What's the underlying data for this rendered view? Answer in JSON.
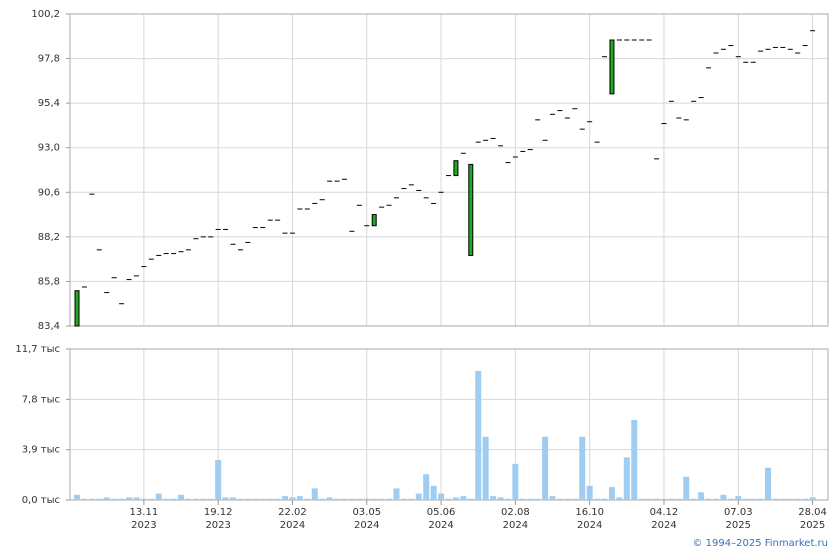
{
  "chart_data": [
    {
      "type": "candlestick",
      "color": "#22a822",
      "open": [
        83.4,
        85.5,
        90.5,
        87.5,
        85.2,
        86.0,
        84.6,
        85.9,
        86.1,
        86.6,
        87.0,
        87.2,
        87.3,
        87.3,
        87.4,
        87.5,
        88.1,
        88.2,
        88.2,
        88.6,
        88.6,
        87.8,
        87.5,
        87.9,
        88.7,
        88.7,
        89.1,
        89.1,
        88.4,
        88.4,
        89.7,
        89.7,
        90.0,
        90.2,
        91.2,
        91.2,
        91.3,
        88.5,
        89.9,
        88.8,
        88.8,
        89.8,
        89.9,
        90.3,
        90.8,
        91.0,
        90.7,
        90.3,
        90.0,
        90.6,
        91.5,
        91.5,
        92.7,
        87.2,
        93.3,
        93.4,
        93.5,
        93.1,
        92.2,
        92.5,
        92.8,
        92.9,
        94.5,
        93.4,
        94.8,
        95.0,
        94.6,
        95.1,
        94.0,
        94.4,
        93.3,
        97.9,
        95.9,
        98.8,
        98.8,
        98.8,
        98.8,
        98.8,
        92.4,
        94.3,
        95.5,
        94.6,
        94.5,
        95.5,
        95.7,
        97.3,
        98.1,
        98.3,
        98.5,
        97.9,
        97.6,
        97.6,
        98.2,
        98.3,
        98.4,
        98.4,
        98.3,
        98.1,
        98.5,
        99.3
      ],
      "close": [
        85.3,
        85.5,
        90.5,
        87.5,
        85.2,
        86.0,
        84.6,
        85.9,
        86.1,
        86.6,
        87.0,
        87.2,
        87.3,
        87.3,
        87.4,
        87.5,
        88.1,
        88.2,
        88.2,
        88.6,
        88.6,
        87.8,
        87.5,
        87.9,
        88.7,
        88.7,
        89.1,
        89.1,
        88.4,
        88.4,
        89.7,
        89.7,
        90.0,
        90.2,
        91.2,
        91.2,
        91.3,
        88.5,
        89.9,
        88.8,
        89.4,
        89.8,
        89.9,
        90.3,
        90.8,
        91.0,
        90.7,
        90.3,
        90.0,
        90.6,
        91.5,
        92.3,
        92.7,
        92.1,
        93.3,
        93.4,
        93.5,
        93.1,
        92.2,
        92.5,
        92.8,
        92.9,
        94.5,
        93.4,
        94.8,
        95.0,
        94.6,
        95.1,
        94.0,
        94.4,
        93.3,
        97.9,
        98.8,
        98.8,
        98.8,
        98.8,
        98.8,
        98.8,
        92.4,
        94.3,
        95.5,
        94.6,
        94.5,
        95.5,
        95.7,
        97.3,
        98.1,
        98.3,
        98.5,
        97.9,
        97.6,
        97.6,
        98.2,
        98.3,
        98.4,
        98.4,
        98.3,
        98.1,
        98.5,
        99.3
      ],
      "ylim": [
        83.4,
        100.2
      ],
      "yticks": [
        {
          "value": 83.4,
          "label": "83,4"
        },
        {
          "value": 85.8,
          "label": "85,8"
        },
        {
          "value": 88.2,
          "label": "88,2"
        },
        {
          "value": 90.6,
          "label": "90,6"
        },
        {
          "value": 93.0,
          "label": "93,0"
        },
        {
          "value": 95.4,
          "label": "95,4"
        },
        {
          "value": 97.8,
          "label": "97,8"
        },
        {
          "value": 100.2,
          "label": "100,2"
        }
      ],
      "grid": true
    },
    {
      "type": "bar",
      "color": "#9fcdf2",
      "values": [
        0.4,
        0.1,
        0.1,
        0.1,
        0.2,
        0.1,
        0.1,
        0.2,
        0.2,
        0.1,
        0.1,
        0.5,
        0.1,
        0.1,
        0.4,
        0.1,
        0.1,
        0.1,
        0.1,
        3.1,
        0.2,
        0.2,
        0.1,
        0.1,
        0.1,
        0.1,
        0.1,
        0.1,
        0.3,
        0.2,
        0.3,
        0.1,
        0.9,
        0.1,
        0.2,
        0.1,
        0.1,
        0.1,
        0.1,
        0.1,
        0.1,
        0.1,
        0.1,
        0.9,
        0.1,
        0.1,
        0.5,
        2.0,
        1.1,
        0.5,
        0.1,
        0.2,
        0.3,
        0.1,
        10.0,
        4.9,
        0.3,
        0.2,
        0.1,
        2.8,
        0.1,
        0.1,
        0.1,
        4.9,
        0.3,
        0.1,
        0.1,
        0.1,
        4.9,
        1.1,
        0.1,
        0.1,
        1.0,
        0.2,
        3.3,
        6.2,
        0.1,
        0.1,
        0.1,
        0.1,
        0.1,
        0.1,
        1.8,
        0.1,
        0.6,
        0.1,
        0.1,
        0.4,
        0.1,
        0.3,
        0.1,
        0.1,
        0.1,
        2.5,
        0.1,
        0.1,
        0.1,
        0.1,
        0.1,
        0.2
      ],
      "ylim": [
        0,
        11.7
      ],
      "yticks": [
        {
          "value": 0,
          "label": "0,0 тыс"
        },
        {
          "value": 3.9,
          "label": "3,9 тыс"
        },
        {
          "value": 7.8,
          "label": "7,8 тыс"
        },
        {
          "value": 11.7,
          "label": "11,7 тыс"
        }
      ],
      "xticks": [
        {
          "value": 9,
          "label": "13.11",
          "year": "2023"
        },
        {
          "value": 19,
          "label": "19.12",
          "year": "2023"
        },
        {
          "value": 29,
          "label": "22.02",
          "year": "2024"
        },
        {
          "value": 39,
          "label": "03.05",
          "year": "2024"
        },
        {
          "value": 49,
          "label": "05.06",
          "year": "2024"
        },
        {
          "value": 59,
          "label": "02.08",
          "year": "2024"
        },
        {
          "value": 69,
          "label": "16.10",
          "year": "2024"
        },
        {
          "value": 79,
          "label": "04.12",
          "year": "2024"
        },
        {
          "value": 89,
          "label": "07.03",
          "year": "2025"
        },
        {
          "value": 99,
          "label": "28.04",
          "year": "2025"
        }
      ],
      "grid": true
    }
  ],
  "copyright": "© 1994–2025 Finmarket.ru"
}
